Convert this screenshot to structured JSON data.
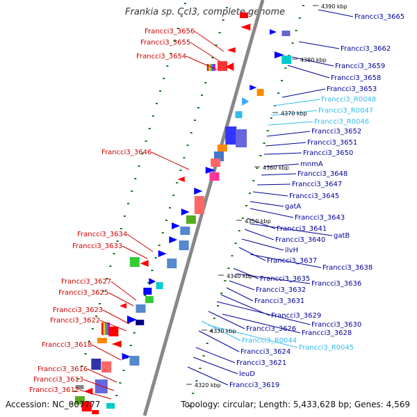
{
  "title": "Frankia sp. CcI3, complete genome",
  "accession": "Accession: NC_007777",
  "topology": "Topology: circular; Length: 5,433,628 bp; Genes: 4,569",
  "colors": {
    "left_label": "#cc0000",
    "right_label": "#000099",
    "rna_label": "#33bbee",
    "backbone": "#888888",
    "tick": "#117711"
  },
  "kbp_markers": [
    "4390 kbp",
    "4380 kbp",
    "4370 kbp",
    "4360 kbp",
    "4350 kbp",
    "4340 kbp",
    "4330 kbp",
    "4320 kbp"
  ],
  "left_labels": [
    "Francci3_3656",
    "Francci3_3655",
    "Francci3_3654",
    "Francci3_3646",
    "Francci3_3634",
    "Francci3_3633",
    "Francci3_3627",
    "Francci3_3625",
    "Francci3_3623",
    "Francci3_3622",
    "Francci3_3618",
    "Francci3_3616",
    "Francci3_3613",
    "Francci3_3612"
  ],
  "right_labels": [
    "Francci3_3665",
    "Francci3_3662",
    "Francci3_3659",
    "Francci3_3658",
    "Francci3_3653",
    "Francci3_R0048",
    "Francci3_R0047",
    "Francci3_R0046",
    "Francci3_3652",
    "Francci3_3651",
    "Francci3_3650",
    "mnmA",
    "Francci3_3648",
    "Francci3_3647",
    "Francci3_3645",
    "gatA",
    "Francci3_3643",
    "Francci3_3641",
    "gatB",
    "Francci3_3640",
    "ilvH",
    "Francci3_3637",
    "Francci3_3638",
    "Francci3_3635",
    "Francci3_3636",
    "Francci3_3632",
    "Francci3_3631",
    "Francci3_3629",
    "Francci3_3630",
    "Francci3_3626",
    "Francci3_3628",
    "Francci3_R0044",
    "Francci3_R0045",
    "Francci3_3624",
    "Francci3_3621",
    "leuD",
    "Francci3_3619"
  ],
  "right_label_types": [
    "gene",
    "gene",
    "gene",
    "gene",
    "gene",
    "rna",
    "rna",
    "rna",
    "gene",
    "gene",
    "gene",
    "gene",
    "gene",
    "gene",
    "gene",
    "gene",
    "gene",
    "gene",
    "gene",
    "gene",
    "gene",
    "gene",
    "gene",
    "gene",
    "gene",
    "gene",
    "gene",
    "gene",
    "gene",
    "gene",
    "gene",
    "rna",
    "rna",
    "gene",
    "gene",
    "gene",
    "gene"
  ]
}
